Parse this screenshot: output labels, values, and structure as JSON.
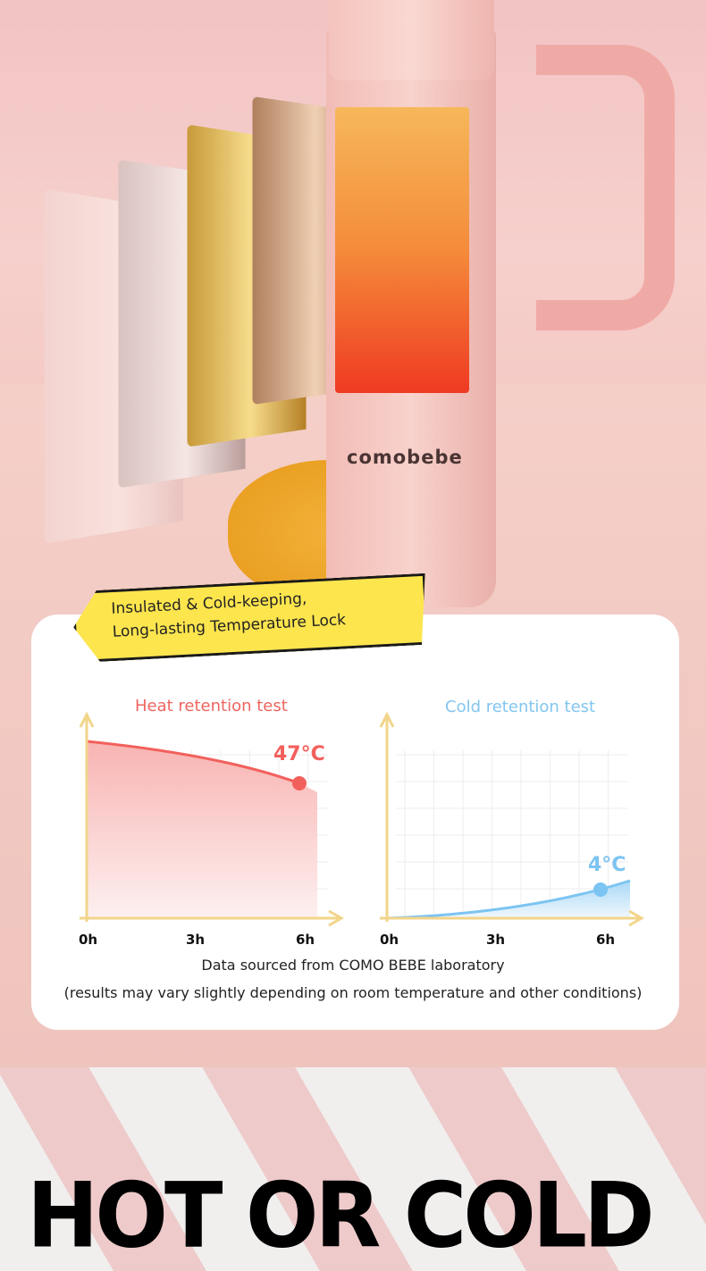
{
  "brand": "comobebe",
  "badge": {
    "line1": "Insulated & Cold-keeping,",
    "line2": "Long-lasting Temperature Lock"
  },
  "chart_data": [
    {
      "type": "area",
      "title": "Heat retention test",
      "x_ticks": [
        "0h",
        "3h",
        "6h"
      ],
      "annotation": {
        "x": "6h",
        "label": "47°C"
      },
      "trend": "decreasing",
      "color": "#f2605c",
      "grid": true
    },
    {
      "type": "area",
      "title": "Cold retention test",
      "x_ticks": [
        "0h",
        "3h",
        "6h"
      ],
      "annotation": {
        "x": "6h",
        "label": "4°C"
      },
      "trend": "increasing",
      "color": "#7cc4f2",
      "grid": true
    }
  ],
  "notes": {
    "source": "Data sourced from COMO BEBE laboratory",
    "disclaimer": "(results may vary slightly depending on room temperature and other conditions)"
  },
  "headline": "HOT OR COLD"
}
